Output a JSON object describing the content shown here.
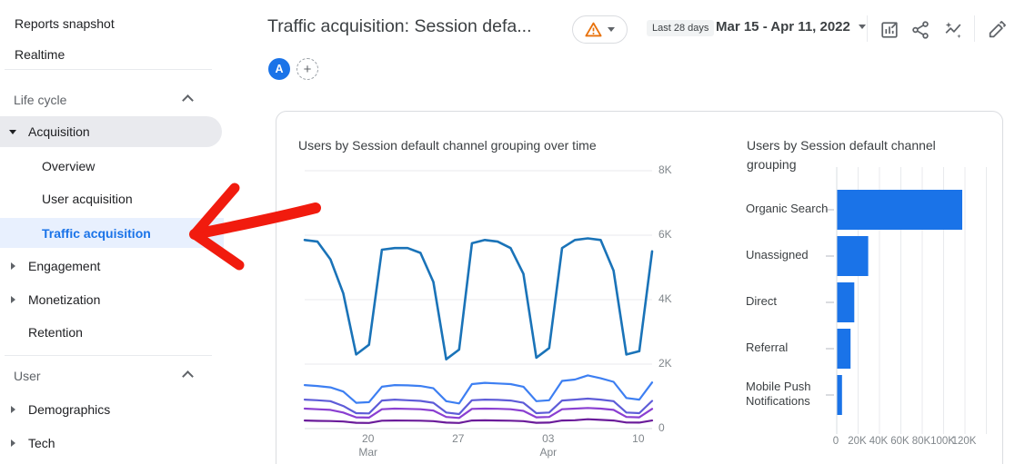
{
  "sidebar": {
    "items": [
      {
        "label": "Reports snapshot",
        "type": "link"
      },
      {
        "label": "Realtime",
        "type": "link"
      },
      {
        "type": "divider"
      },
      {
        "label": "Life cycle",
        "type": "section"
      },
      {
        "label": "Acquisition",
        "type": "parent",
        "state": "expanded",
        "highlighted": true
      },
      {
        "label": "Overview",
        "type": "child"
      },
      {
        "label": "User acquisition",
        "type": "child"
      },
      {
        "label": "Traffic acquisition",
        "type": "child",
        "selected": true
      },
      {
        "label": "Engagement",
        "type": "parent",
        "state": "collapsed"
      },
      {
        "label": "Monetization",
        "type": "parent",
        "state": "collapsed"
      },
      {
        "label": "Retention",
        "type": "plain"
      },
      {
        "type": "divider"
      },
      {
        "label": "User",
        "type": "section"
      },
      {
        "label": "Demographics",
        "type": "parent",
        "state": "collapsed"
      },
      {
        "label": "Tech",
        "type": "parent",
        "state": "collapsed"
      }
    ]
  },
  "header": {
    "title": "Traffic acquisition: Session defa...",
    "warning_badge_icon": "warning-triangle-icon",
    "date_range_label": "Last 28 days",
    "date_range": "Mar 15 - Apr 11, 2022",
    "toolbar_icons": [
      "customize-report-icon",
      "share-icon",
      "insights-icon",
      "edit-icon"
    ]
  },
  "comparison": {
    "avatar_label": "A",
    "add_label": "+"
  },
  "chart_data": [
    {
      "type": "line",
      "title": "Users by Session default channel grouping over time",
      "ylim": [
        0,
        8000
      ],
      "yticks": [
        {
          "v": 0,
          "label": "0"
        },
        {
          "v": 2000,
          "label": "2K"
        },
        {
          "v": 4000,
          "label": "4K"
        },
        {
          "v": 6000,
          "label": "6K"
        },
        {
          "v": 8000,
          "label": "8K"
        }
      ],
      "x_points": 28,
      "x_range": "Mar 15 - Apr 11, 2022",
      "xticks": [
        {
          "i": 5,
          "label": "20",
          "sublabel": "Mar"
        },
        {
          "i": 12,
          "label": "27",
          "sublabel": ""
        },
        {
          "i": 19,
          "label": "03",
          "sublabel": "Apr"
        },
        {
          "i": 26,
          "label": "10",
          "sublabel": ""
        }
      ],
      "grid": "horizontal",
      "legend": "none",
      "series": [
        {
          "name": "series-1",
          "color": "#1a73b8",
          "values": [
            5850,
            5800,
            5250,
            4200,
            2300,
            2600,
            5550,
            5600,
            5600,
            5450,
            4550,
            2150,
            2450,
            5750,
            5850,
            5800,
            5600,
            4800,
            2200,
            2500,
            5600,
            5850,
            5900,
            5850,
            4900,
            2300,
            2400,
            5500
          ]
        },
        {
          "name": "series-2",
          "color": "#3d7ff2",
          "values": [
            1350,
            1320,
            1280,
            1150,
            800,
            820,
            1300,
            1350,
            1340,
            1320,
            1250,
            850,
            780,
            1380,
            1420,
            1400,
            1380,
            1300,
            850,
            880,
            1480,
            1520,
            1650,
            1560,
            1450,
            950,
            900,
            1430
          ]
        },
        {
          "name": "series-3",
          "color": "#5e5cd8",
          "values": [
            900,
            880,
            850,
            700,
            480,
            470,
            870,
            900,
            880,
            860,
            800,
            500,
            450,
            880,
            900,
            890,
            870,
            800,
            480,
            500,
            870,
            900,
            930,
            900,
            850,
            500,
            480,
            860
          ]
        },
        {
          "name": "series-4",
          "color": "#8a3fd1",
          "values": [
            620,
            600,
            580,
            500,
            350,
            340,
            600,
            620,
            610,
            600,
            560,
            360,
            330,
            610,
            620,
            615,
            600,
            550,
            350,
            360,
            600,
            620,
            640,
            620,
            580,
            360,
            350,
            610
          ]
        },
        {
          "name": "series-5",
          "color": "#6a1b9a",
          "values": [
            250,
            240,
            235,
            220,
            180,
            175,
            245,
            250,
            248,
            245,
            230,
            185,
            175,
            250,
            255,
            250,
            245,
            230,
            180,
            185,
            250,
            260,
            290,
            270,
            250,
            190,
            185,
            250
          ]
        }
      ]
    },
    {
      "type": "bar",
      "orientation": "horizontal",
      "title": "Users by Session default channel grouping",
      "categories": [
        "Organic Search",
        "Unassigned",
        "Direct",
        "Referral",
        "Mobile Push Notifications"
      ],
      "values": [
        117000,
        29000,
        16000,
        12500,
        4500
      ],
      "xlim": [
        0,
        140000
      ],
      "xticks": [
        {
          "v": 0,
          "label": "0"
        },
        {
          "v": 20000,
          "label": "20K"
        },
        {
          "v": 40000,
          "label": "40K"
        },
        {
          "v": 60000,
          "label": "60K"
        },
        {
          "v": 80000,
          "label": "80K"
        },
        {
          "v": 100000,
          "label": "100K"
        },
        {
          "v": 120000,
          "label": "120K"
        }
      ],
      "bar_color": "#1a73e8",
      "grid": "vertical"
    }
  ],
  "colors": {
    "accent_blue": "#1a73e8",
    "selected_item_bg": "#e8f0fe",
    "highlight_pill_bg": "#e9eaee",
    "warning_orange": "#e8710a",
    "arrow_red": "#f11b0e",
    "gridline": "#e8eaed",
    "axis_text": "#80868b"
  }
}
